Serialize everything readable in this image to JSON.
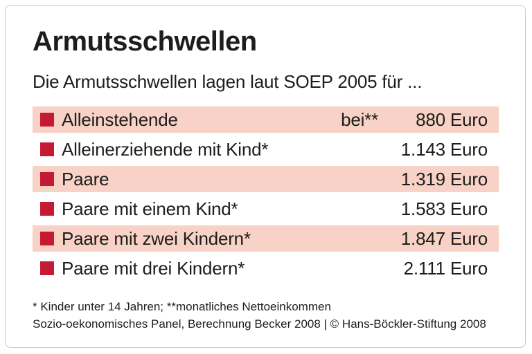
{
  "chart_data": {
    "type": "table",
    "title": "Armutsschwellen",
    "subtitle": "Die Armutsschwellen lagen laut SOEP 2005 für ...",
    "unit": "Euro",
    "categories": [
      "Alleinstehende",
      "Alleinerziehende mit Kind*",
      "Paare",
      "Paare mit einem Kind*",
      "Paare mit zwei Kindern*",
      "Paare mit drei Kindern*"
    ],
    "values": [
      880,
      1143,
      1319,
      1583,
      1847,
      2111
    ],
    "rows": [
      {
        "label": "Alleinstehende",
        "prefix": "bei**",
        "amount": "880 Euro",
        "highlighted": true
      },
      {
        "label": "Alleinerziehende mit Kind*",
        "prefix": "",
        "amount": "1.143 Euro",
        "highlighted": false
      },
      {
        "label": "Paare",
        "prefix": "",
        "amount": "1.319 Euro",
        "highlighted": true
      },
      {
        "label": "Paare mit einem Kind*",
        "prefix": "",
        "amount": "1.583 Euro",
        "highlighted": false
      },
      {
        "label": "Paare mit zwei Kindern*",
        "prefix": "",
        "amount": "1.847 Euro",
        "highlighted": true
      },
      {
        "label": "Paare mit drei Kindern*",
        "prefix": "",
        "amount": "2.111 Euro",
        "highlighted": false
      }
    ],
    "grid": false,
    "legend_position": "none"
  },
  "footer": {
    "footnote": "* Kinder unter 14 Jahren; **monatliches Nettoeinkommen",
    "source": "Sozio-oekonomisches Panel, Berechnung Becker 2008 | © Hans-Böckler-Stiftung 2008"
  },
  "colors": {
    "highlight_row_bg": "#f8d2c6",
    "bullet_red": "#c51a33",
    "text": "#1d1d1b",
    "card_border": "#c9c9c9",
    "background": "#ffffff"
  }
}
